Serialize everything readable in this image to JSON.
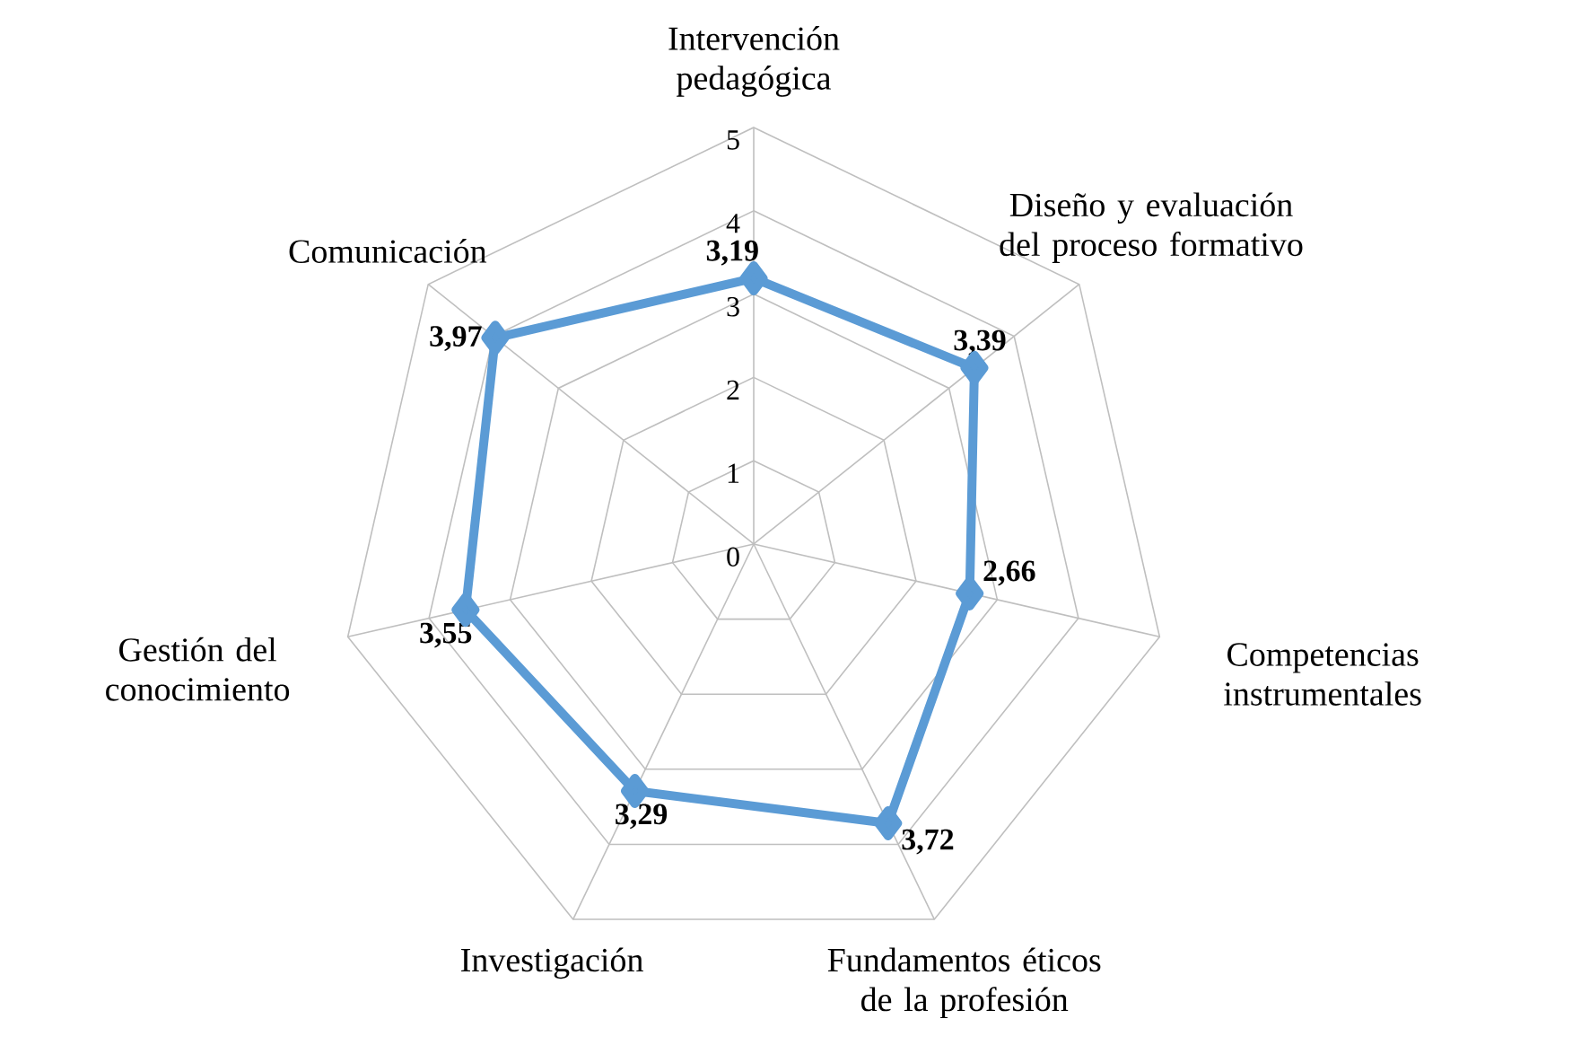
{
  "chart_data": {
    "type": "radar",
    "categories": [
      "Intervención pedagógica",
      "Diseño y evaluación del proceso formativo",
      "Competencias instrumentales",
      "Fundamentos éticos de la profesión",
      "Investigación",
      "Gestión del conocimiento",
      "Comunicación"
    ],
    "values": [
      3.19,
      3.39,
      2.66,
      3.72,
      3.29,
      3.55,
      3.97
    ],
    "value_labels": [
      "3,19",
      "3,39",
      "2,66",
      "3,72",
      "3,29",
      "3,55",
      "3,97"
    ],
    "color": "#5b9bd5",
    "ylim": [
      0,
      5
    ],
    "yticks": [
      0,
      1,
      2,
      3,
      4,
      5
    ],
    "grid": true,
    "marker": "diamond",
    "line_style": "solid"
  }
}
